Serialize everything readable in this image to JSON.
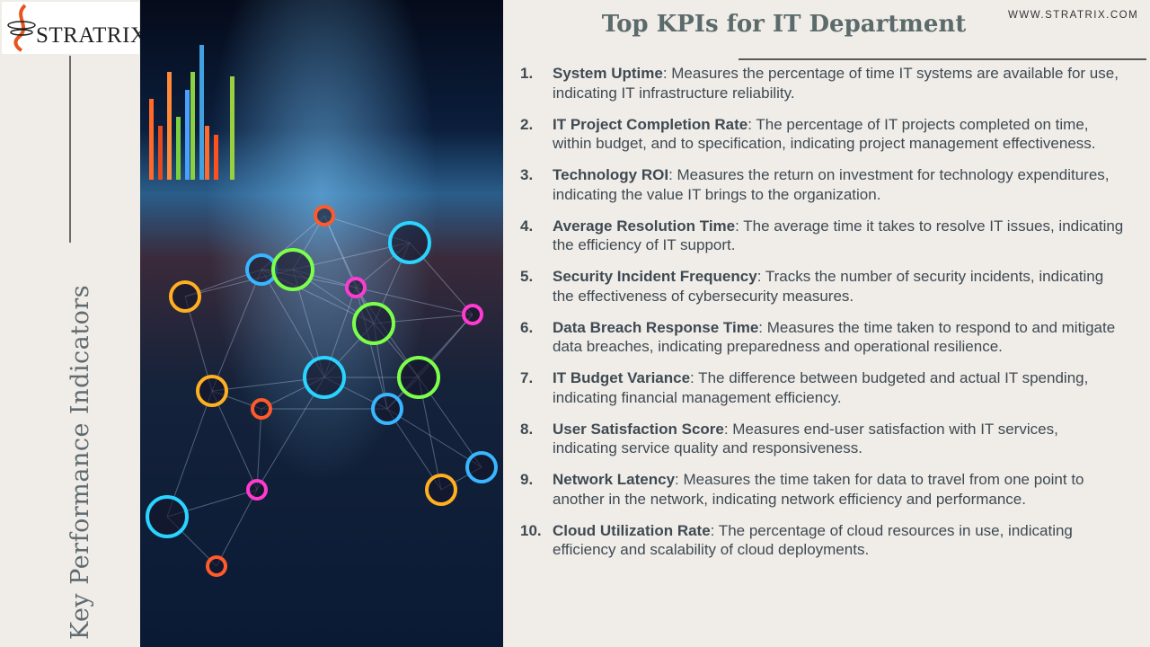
{
  "logo": {
    "text": "STRATRIX"
  },
  "sidebar": {
    "title": "Key Performance Indicators"
  },
  "header": {
    "title": "Top KPIs for IT Department",
    "url": "WWW.STRATRIX.COM"
  },
  "colors": {
    "accent": "#e8541e",
    "text": "#3e4a52",
    "title": "#5b6b6b",
    "background": "#f0ece8"
  },
  "kpis": [
    {
      "num": "1.",
      "term": "System Uptime",
      "desc": ": Measures the percentage of time IT systems are available for use, indicating IT infrastructure reliability."
    },
    {
      "num": "2.",
      "term": "IT Project Completion Rate",
      "desc": ": The percentage of IT projects completed on time, within budget, and to specification, indicating project management effectiveness."
    },
    {
      "num": "3.",
      "term": "Technology ROI",
      "desc": ": Measures the return on investment for technology expenditures, indicating the value IT brings to the organization."
    },
    {
      "num": "4.",
      "term": "Average Resolution Time",
      "desc": ": The average time it takes to resolve IT issues, indicating the efficiency of IT support."
    },
    {
      "num": "5.",
      "term": "Security Incident Frequency",
      "desc": ": Tracks the number of security incidents, indicating the effectiveness of cybersecurity measures."
    },
    {
      "num": "6.",
      "term": "Data Breach Response Time",
      "desc": ": Measures the time taken to respond to and mitigate data breaches, indicating preparedness and operational resilience."
    },
    {
      "num": "7.",
      "term": "IT Budget Variance",
      "desc": ": The difference between budgeted and actual IT spending, indicating financial management efficiency."
    },
    {
      "num": "8.",
      "term": "User Satisfaction Score",
      "desc": ": Measures end-user satisfaction with IT services, indicating service quality and responsiveness."
    },
    {
      "num": "9.",
      "term": "Network Latency",
      "desc": ": Measures the time taken for data to travel from one point to another in the network, indicating network efficiency and performance."
    },
    {
      "num": "10.",
      "term": "Cloud Utilization Rate",
      "desc": ": The percentage of cloud resources in use, indicating efficiency and scalability of cloud deployments."
    }
  ]
}
